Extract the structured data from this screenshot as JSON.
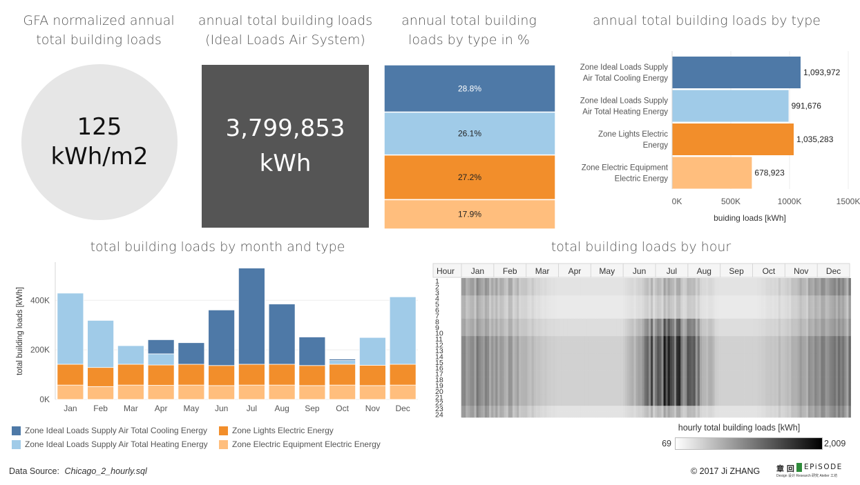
{
  "titles": {
    "gfa": "GFA normalized annual total building loads",
    "annual_total": "annual total building loads (Ideal Loads Air System)",
    "pct": "annual  total building loads by type in %",
    "by_type": "annual total building loads by type",
    "by_month": "total building loads by month and type",
    "by_hour": "total building loads by hour"
  },
  "kpi": {
    "gfa_value": "125",
    "gfa_unit": "kWh/m2",
    "total_value": "3,799,853",
    "total_unit": "kWh"
  },
  "colors": {
    "cooling": "#4e79a7",
    "heating": "#a0cbe8",
    "lights": "#f28e2b",
    "equipment": "#ffbe7d",
    "kpi_dark": "#555555",
    "kpi_circle": "#e6e6e6"
  },
  "legend": [
    {
      "key": "cooling",
      "label": "Zone Ideal Loads Supply Air Total Cooling Energy"
    },
    {
      "key": "lights",
      "label": "Zone Lights Electric Energy"
    },
    {
      "key": "heating",
      "label": "Zone Ideal Loads Supply Air Total Heating Energy"
    },
    {
      "key": "equipment",
      "label": "Zone Electric Equipment Electric Energy"
    }
  ],
  "chart_data": [
    {
      "type": "bar",
      "id": "pct",
      "orientation": "stacked-100",
      "categories": [
        "Zone Ideal Loads Supply Air Total Cooling Energy",
        "Zone Ideal Loads Supply Air Total Heating Energy",
        "Zone Lights Electric Energy",
        "Zone Electric Equipment Electric Energy"
      ],
      "values": [
        28.8,
        26.1,
        27.2,
        17.9
      ],
      "data_labels": [
        "28.8%",
        "26.1%",
        "27.2%",
        "17.9%"
      ]
    },
    {
      "type": "bar",
      "id": "by_type",
      "orientation": "horizontal",
      "categories": [
        "Zone Ideal Loads Supply Air Total Cooling Energy",
        "Zone Ideal Loads Supply Air Total Heating Energy",
        "Zone Lights Electric Energy",
        "Zone Electric Equipment Electric Energy"
      ],
      "category_lines": [
        [
          "Zone Ideal Loads Supply",
          "Air Total Cooling Energy"
        ],
        [
          "Zone Ideal Loads Supply",
          "Air Total Heating Energy"
        ],
        [
          "Zone Lights Electric",
          "Energy"
        ],
        [
          "Zone Electric Equipment",
          "Electric Energy"
        ]
      ],
      "values": [
        1093972,
        991676,
        1035283,
        678923
      ],
      "data_labels": [
        "1,093,972",
        "991,676",
        "1,035,283",
        "678,923"
      ],
      "xticks": [
        0,
        500000,
        1000000,
        1500000
      ],
      "xtick_labels": [
        "0K",
        "500K",
        "1000K",
        "1500K"
      ],
      "xlabel": "buiding loads [kWh]",
      "xlim": [
        0,
        1500000
      ]
    },
    {
      "type": "bar",
      "id": "by_month",
      "orientation": "stacked",
      "categories": [
        "Jan",
        "Feb",
        "Mar",
        "Apr",
        "May",
        "Jun",
        "Jul",
        "Aug",
        "Sep",
        "Oct",
        "Nov",
        "Dec"
      ],
      "series": [
        {
          "name": "Zone Electric Equipment Electric Energy",
          "key": "equipment",
          "values": [
            58000,
            52000,
            58000,
            57000,
            58000,
            56000,
            58000,
            58000,
            56000,
            58000,
            56000,
            58000
          ]
        },
        {
          "name": "Zone Lights Electric Energy",
          "key": "lights",
          "values": [
            84000,
            77000,
            84000,
            82000,
            84000,
            81000,
            84000,
            84000,
            81000,
            84000,
            82000,
            84000
          ]
        },
        {
          "name": "Zone Ideal Loads Supply Air Total Heating Energy",
          "key": "heating",
          "values": [
            287000,
            190000,
            75000,
            45000,
            0,
            0,
            0,
            0,
            0,
            15000,
            112000,
            272000
          ]
        },
        {
          "name": "Zone Ideal Loads Supply Air Total Cooling Energy",
          "key": "cooling",
          "values": [
            0,
            0,
            0,
            57000,
            87000,
            224000,
            388000,
            243000,
            115000,
            6000,
            0,
            0
          ]
        }
      ],
      "yticks": [
        0,
        200000,
        400000
      ],
      "ytick_labels": [
        "0K",
        "200K",
        "400K"
      ],
      "ylabel": "total building loads [kWh]",
      "ylim": [
        0,
        540000
      ]
    },
    {
      "type": "heatmap",
      "id": "by_hour",
      "x_header": "Hour",
      "months": [
        "Jan",
        "Feb",
        "Mar",
        "Apr",
        "May",
        "Jun",
        "Jul",
        "Aug",
        "Sep",
        "Oct",
        "Nov",
        "Dec"
      ],
      "hours": [
        "1",
        "2",
        "3",
        "4",
        "5",
        "6",
        "7",
        "8",
        "9",
        "10",
        "11",
        "12",
        "13",
        "14",
        "15",
        "16",
        "17",
        "18",
        "19",
        "20",
        "21",
        "22",
        "23",
        "24"
      ],
      "color_scale": {
        "label": "hourly total building loads [kWh]",
        "min": 69,
        "max": 2009,
        "min_label": "69",
        "max_label": "2,009",
        "from": "#ffffff",
        "to": "#000000"
      }
    }
  ],
  "footer": {
    "source_label": "Data Source:",
    "source_value": "Chicago_2_hourly.sql",
    "copyright": "© 2017 Ji ZHANG",
    "brand_cn": "章 回",
    "brand_en": "EPiSODE",
    "brand_sub": "Design 设计  Research 研究  Atelier 工坊"
  }
}
